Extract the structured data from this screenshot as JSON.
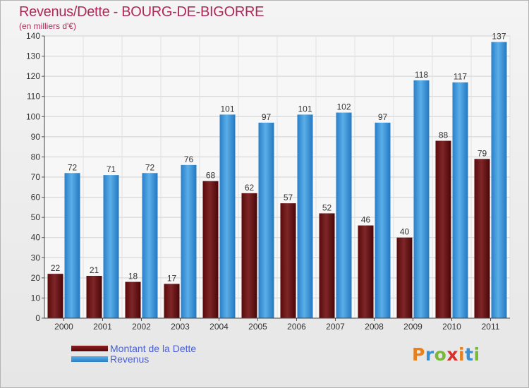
{
  "header": {
    "title": "Revenus/Dette - BOURG-DE-BIGORRE",
    "subtitle": "(en milliers d'€)"
  },
  "legend": {
    "items": [
      {
        "label": "Montant de la Dette",
        "color": "#6e0e10"
      },
      {
        "label": "Revenus",
        "color": "#3d96dc"
      }
    ]
  },
  "brand": {
    "letters": [
      "P",
      "r",
      "o",
      "x",
      "i",
      "t",
      "i"
    ],
    "colors": [
      "#e8801c",
      "#3a8fd0",
      "#7ab83a",
      "#d8302a",
      "#e8801c",
      "#3a8fd0",
      "#7ab83a"
    ]
  },
  "chart_data": {
    "type": "bar",
    "title": "Revenus/Dette - BOURG-DE-BIGORRE",
    "ylabel": "(en milliers d'€)",
    "categories": [
      "2000",
      "2001",
      "2002",
      "2003",
      "2004",
      "2005",
      "2006",
      "2007",
      "2008",
      "2009",
      "2010",
      "2011"
    ],
    "series": [
      {
        "name": "Montant de la Dette",
        "values": [
          22,
          21,
          18,
          17,
          68,
          62,
          57,
          52,
          46,
          40,
          88,
          79
        ],
        "color": "#6e0e10"
      },
      {
        "name": "Revenus",
        "values": [
          72,
          71,
          72,
          76,
          101,
          97,
          101,
          102,
          97,
          118,
          117,
          137
        ],
        "color": "#3d96dc"
      }
    ],
    "ylim": [
      0,
      140
    ],
    "yticks": [
      0,
      10,
      20,
      30,
      40,
      50,
      60,
      70,
      80,
      90,
      100,
      110,
      120,
      130,
      140
    ],
    "grid": true,
    "legend_position": "bottom-left",
    "data_labels": true
  }
}
